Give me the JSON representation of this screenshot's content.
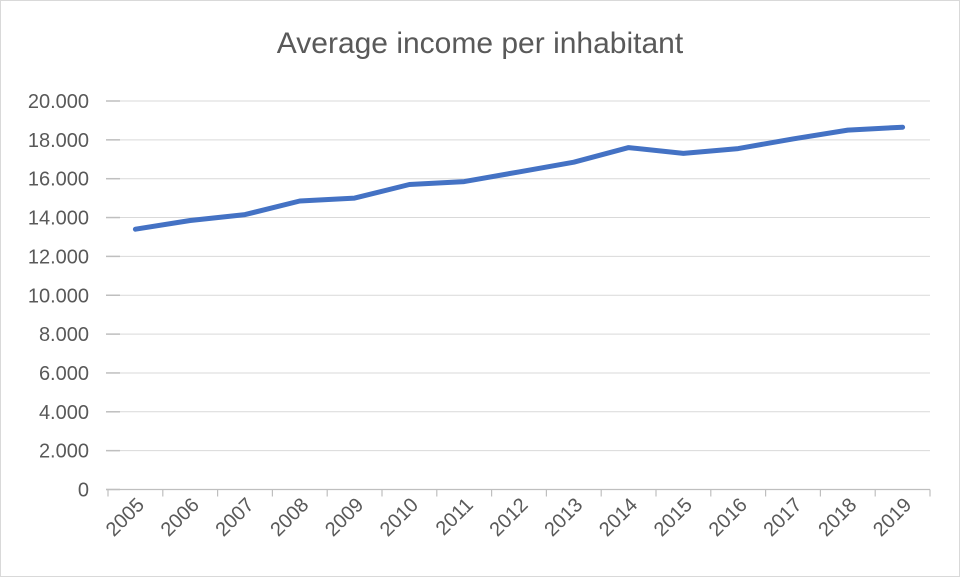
{
  "frame": {
    "background": "#ffffff",
    "border_color": "#d9d9d9"
  },
  "chart_data": {
    "type": "line",
    "title": "Average income per inhabitant",
    "title_color": "#595959",
    "categories": [
      "2005",
      "2006",
      "2007",
      "2008",
      "2009",
      "2010",
      "2011",
      "2012",
      "2013",
      "2014",
      "2015",
      "2016",
      "2017",
      "2018",
      "2019"
    ],
    "series": [
      {
        "color": "#4472c4",
        "values": [
          13400,
          13850,
          14150,
          14850,
          15000,
          15700,
          15850,
          16350,
          16850,
          17600,
          17300,
          17550,
          18050,
          18500,
          18650
        ]
      }
    ],
    "xlabel": "",
    "ylabel": "",
    "ylim": [
      0,
      20000
    ],
    "y_tick_interval": 2000,
    "y_tick_labels": [
      "0",
      "2.000",
      "4.000",
      "6.000",
      "8.000",
      "10.000",
      "12.000",
      "14.000",
      "16.000",
      "18.000",
      "20.000"
    ],
    "x_label_rotation": -45,
    "grid": "horizontal",
    "gridline_color": "#d9d9d9",
    "axis_color": "#bfbfbf",
    "tick_label_color": "#595959",
    "legend": "none"
  }
}
